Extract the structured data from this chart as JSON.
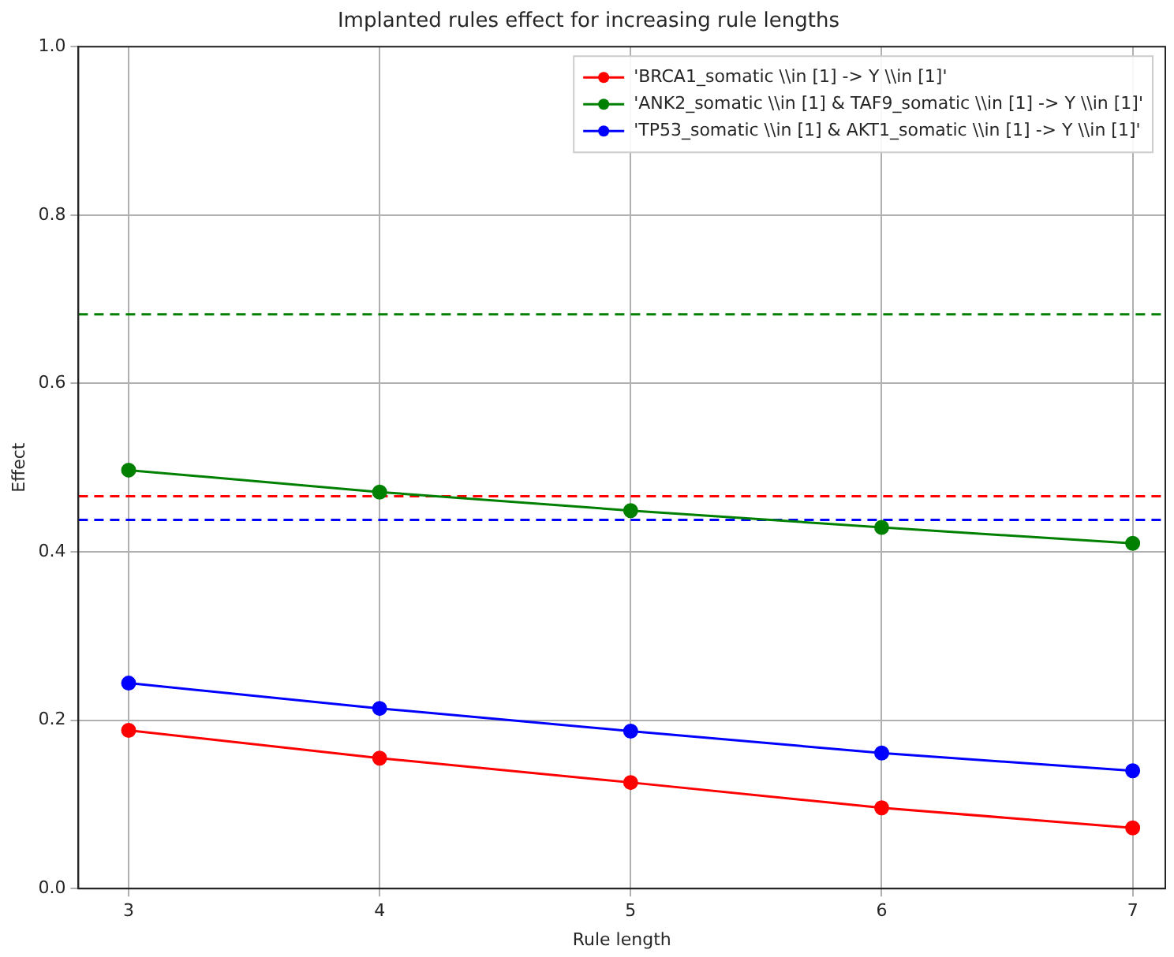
{
  "chart_data": {
    "type": "line",
    "title": "Implanted rules effect for increasing rule lengths",
    "xlabel": "Rule length",
    "ylabel": "Effect",
    "x": [
      3,
      4,
      5,
      6,
      7
    ],
    "series": [
      {
        "name": "'BRCA1_somatic \\\\in [1] -> Y \\\\in [1]'",
        "color": "#ff0000",
        "values": [
          0.188,
          0.155,
          0.126,
          0.096,
          0.072
        ]
      },
      {
        "name": "'ANK2_somatic \\\\in [1] & TAF9_somatic \\\\in [1] -> Y \\\\in [1]'",
        "color": "#008000",
        "values": [
          0.497,
          0.471,
          0.449,
          0.429,
          0.41
        ]
      },
      {
        "name": "'TP53_somatic \\\\in [1] & AKT1_somatic \\\\in [1] -> Y \\\\in [1]'",
        "color": "#0000ff",
        "values": [
          0.244,
          0.214,
          0.187,
          0.161,
          0.14
        ]
      }
    ],
    "ref_lines": [
      {
        "axis": "y",
        "value": 0.682,
        "color": "#008000",
        "line_style": "dashed"
      },
      {
        "axis": "y",
        "value": 0.466,
        "color": "#ff0000",
        "line_style": "dashed"
      },
      {
        "axis": "y",
        "value": 0.438,
        "color": "#0000ff",
        "line_style": "dashed"
      }
    ],
    "xlim": [
      2.8,
      7.13
    ],
    "xticks": [
      3,
      4,
      5,
      6,
      7
    ],
    "ylim": [
      0,
      1
    ],
    "yticks": [
      {
        "value": 0,
        "label": "0.0"
      },
      0.2,
      0.4,
      0.6,
      0.8,
      {
        "value": 1,
        "label": "1.0"
      }
    ],
    "grid": true,
    "legend": "top right",
    "marker": "circle",
    "line_style": "solid"
  }
}
